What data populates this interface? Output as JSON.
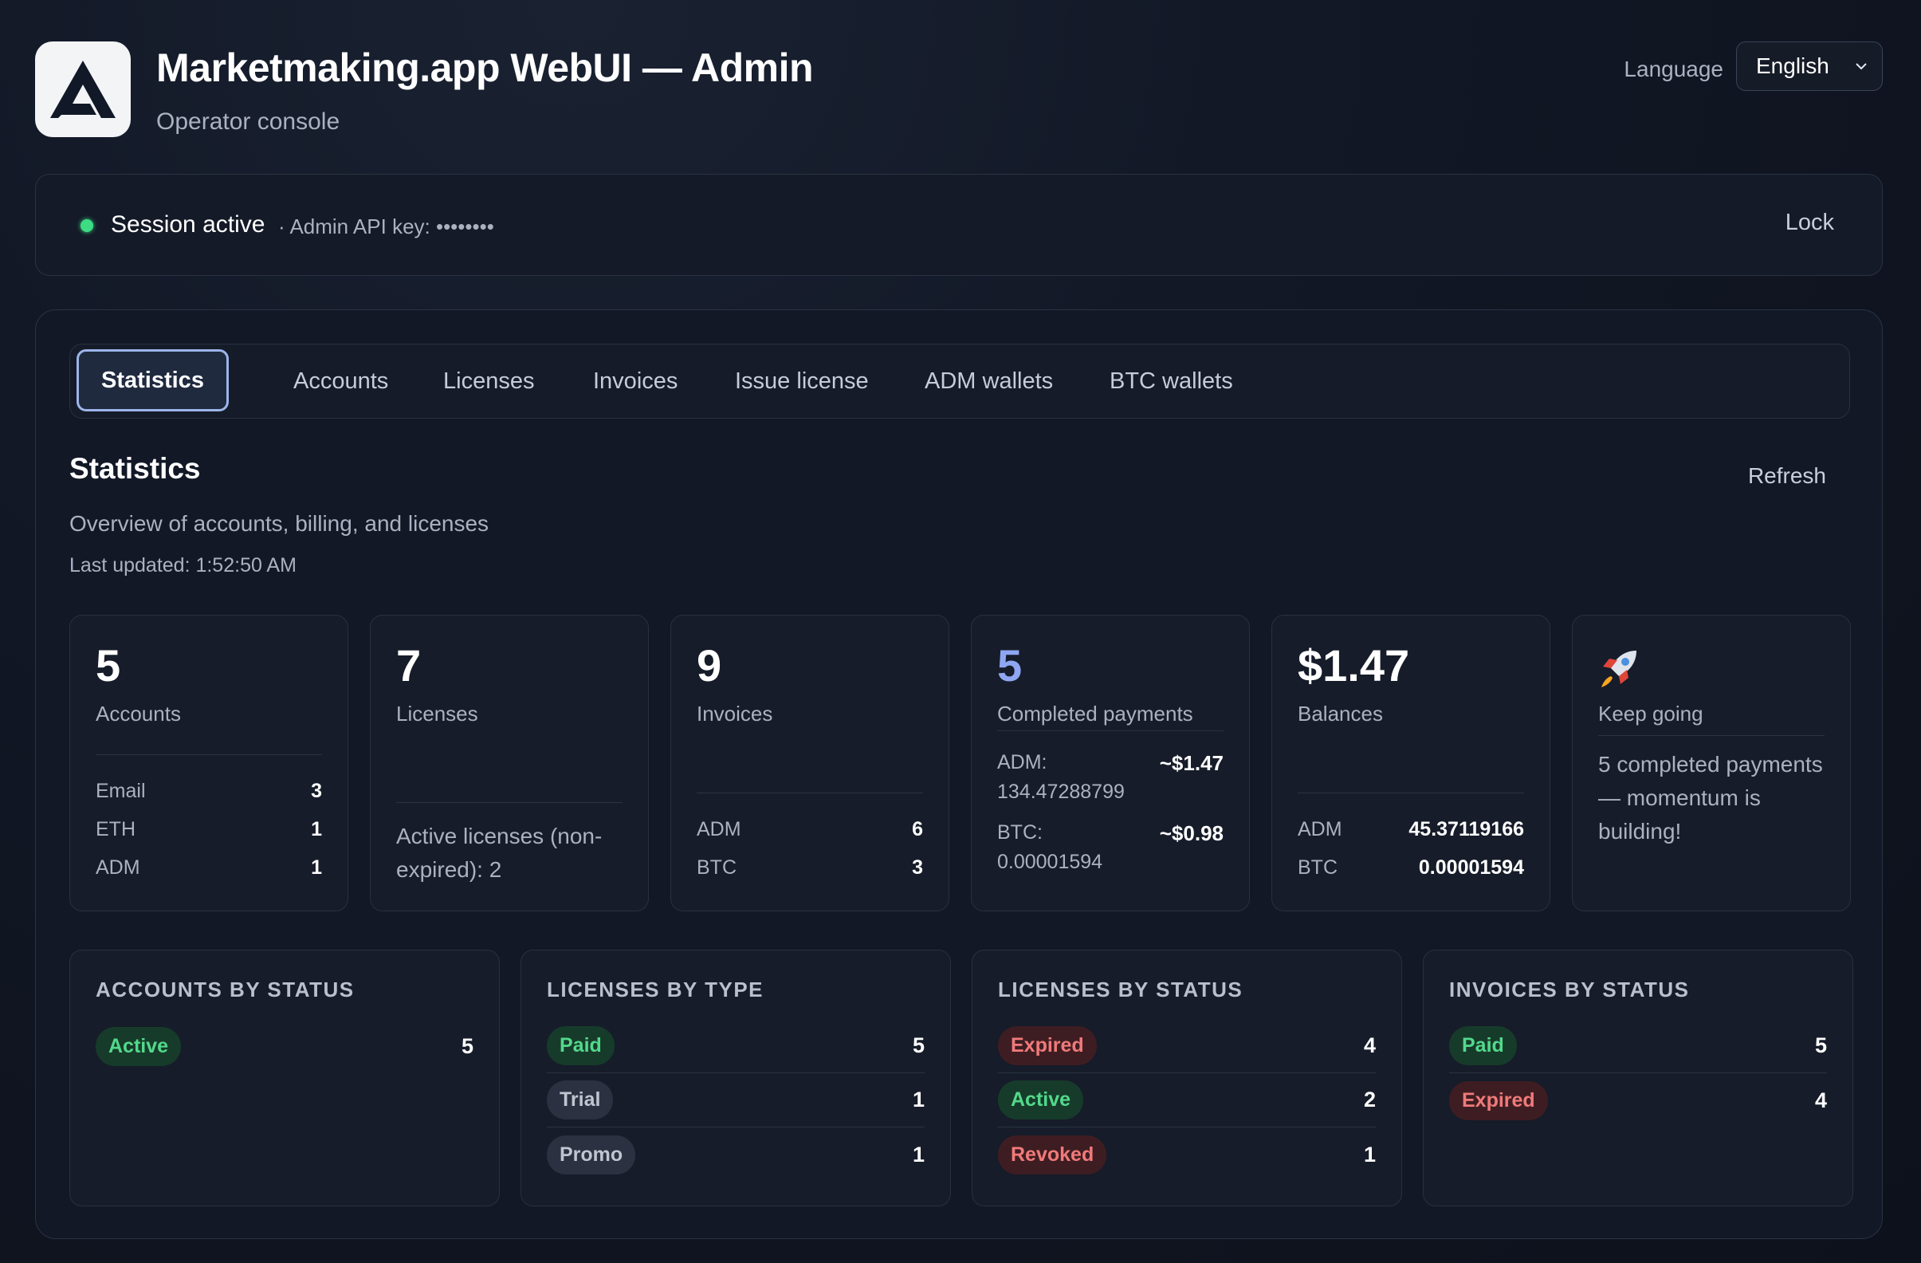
{
  "header": {
    "title": "Marketmaking.app WebUI — Admin",
    "subtitle": "Operator console",
    "language_label": "Language",
    "language_value": "English"
  },
  "session": {
    "status": "Session active",
    "api_key_label": "· Admin API key: ••••••••",
    "lock_label": "Lock"
  },
  "tabs": [
    {
      "label": "Statistics",
      "active": true
    },
    {
      "label": "Accounts"
    },
    {
      "label": "Licenses"
    },
    {
      "label": "Invoices"
    },
    {
      "label": "Issue license"
    },
    {
      "label": "ADM wallets"
    },
    {
      "label": "BTC wallets"
    }
  ],
  "statistics": {
    "title": "Statistics",
    "refresh_label": "Refresh",
    "description": "Overview of accounts, billing, and licenses",
    "last_updated": "Last updated: 1:52:50 AM",
    "cards": {
      "accounts": {
        "value": "5",
        "label": "Accounts",
        "rows": [
          {
            "k": "Email",
            "v": "3"
          },
          {
            "k": "ETH",
            "v": "1"
          },
          {
            "k": "ADM",
            "v": "1"
          }
        ]
      },
      "licenses": {
        "value": "7",
        "label": "Licenses",
        "note": "Active licenses (non-expired): 2"
      },
      "invoices": {
        "value": "9",
        "label": "Invoices",
        "rows": [
          {
            "k": "ADM",
            "v": "6"
          },
          {
            "k": "BTC",
            "v": "3"
          }
        ]
      },
      "payments": {
        "value": "5",
        "label": "Completed payments",
        "accent": "#8fa6f2",
        "adm_line1": "ADM:",
        "adm_line2": "134.47288799",
        "adm_usd": "~$1.47",
        "btc_line1": "BTC:",
        "btc_line2": "0.00001594",
        "btc_usd": "~$0.98"
      },
      "balances": {
        "value": "$1.47",
        "label": "Balances",
        "rows": [
          {
            "k": "ADM",
            "v": "45.37119166"
          },
          {
            "k": "BTC",
            "v": "0.00001594"
          }
        ]
      },
      "motivation": {
        "icon": "rocket-icon",
        "label": "Keep going",
        "note": "5 completed payments — momentum is building!"
      }
    },
    "breakdowns": {
      "accounts_by_status": {
        "title": "ACCOUNTS BY STATUS",
        "rows": [
          {
            "badge": "Active",
            "color": "green",
            "value": "5"
          }
        ]
      },
      "licenses_by_type": {
        "title": "LICENSES BY TYPE",
        "rows": [
          {
            "badge": "Paid",
            "color": "green",
            "value": "5"
          },
          {
            "badge": "Trial",
            "color": "gray",
            "value": "1"
          },
          {
            "badge": "Promo",
            "color": "gray",
            "value": "1"
          }
        ]
      },
      "licenses_by_status": {
        "title": "LICENSES BY STATUS",
        "rows": [
          {
            "badge": "Expired",
            "color": "red",
            "value": "4"
          },
          {
            "badge": "Active",
            "color": "green",
            "value": "2"
          },
          {
            "badge": "Revoked",
            "color": "red",
            "value": "1"
          }
        ]
      },
      "invoices_by_status": {
        "title": "INVOICES BY STATUS",
        "rows": [
          {
            "badge": "Paid",
            "color": "green",
            "value": "5"
          },
          {
            "badge": "Expired",
            "color": "red",
            "value": "4"
          }
        ]
      }
    }
  }
}
